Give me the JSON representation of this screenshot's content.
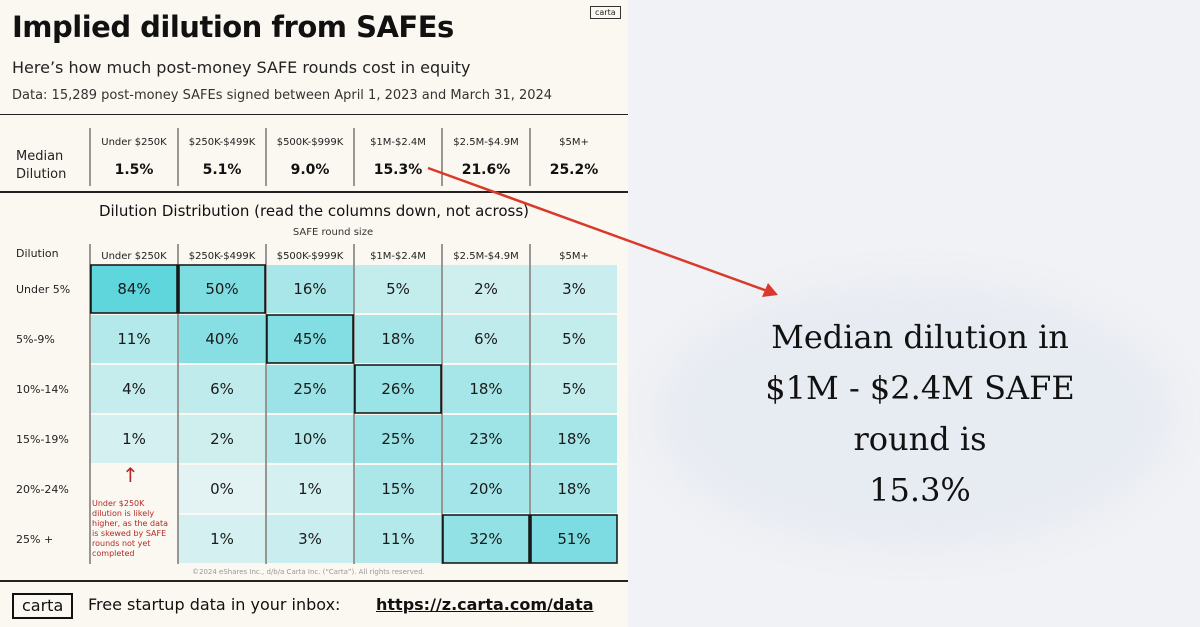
{
  "header": {
    "title": "Implied dilution from SAFEs",
    "subtitle": "Here’s how much post-money SAFE rounds cost in equity",
    "data_note": "Data: 15,289 post-money SAFEs signed between April 1, 2023 and March 31, 2024",
    "brand_tag": "carta"
  },
  "median": {
    "label_line1": "Median",
    "label_line2": "Dilution"
  },
  "distribution": {
    "title": "Dilution Distribution (read the columns down, not across)",
    "x_caption": "SAFE round size",
    "corner_label": "Dilution",
    "footnote": "Under $250K dilution is likely higher, as the data is skewed by SAFE rounds not yet completed",
    "footnote_arrow": "↑",
    "copyright": "©2024 eShares Inc., d/b/a Carta Inc. (“Carta”). All rights reserved."
  },
  "footer": {
    "logo": "carta",
    "text": "Free startup data in your inbox:",
    "link": "https://z.carta.com/data"
  },
  "callout": {
    "line1": "Median dilution in",
    "line2": "$1M - $2.4M SAFE",
    "line3": "round is",
    "line4": "15.3%"
  },
  "colors": {
    "accent_arrow": "#d93a2b",
    "cell_high": "#5fd6dc",
    "cell_low": "#e3f3f3",
    "footnote_red": "#b22a2a"
  },
  "chart_data": [
    {
      "type": "table",
      "title": "Median Dilution",
      "categories": [
        "Under $250K",
        "$250K-$499K",
        "$500K-$999K",
        "$1M-$2.4M",
        "$2.5M-$4.9M",
        "$5M+"
      ],
      "values": [
        1.5,
        5.1,
        9.0,
        15.3,
        21.6,
        25.2
      ],
      "value_labels": [
        "1.5%",
        "5.1%",
        "9.0%",
        "15.3%",
        "21.6%",
        "25.2%"
      ],
      "highlight_category": "$1M-$2.4M"
    },
    {
      "type": "heatmap",
      "title": "Dilution Distribution (read the columns down, not across)",
      "xlabel": "SAFE round size",
      "ylabel": "Dilution",
      "columns": [
        "Under $250K",
        "$250K-$499K",
        "$500K-$999K",
        "$1M-$2.4M",
        "$2.5M-$4.9M",
        "$5M+"
      ],
      "rows": [
        "Under 5%",
        "5%-9%",
        "10%-14%",
        "15%-19%",
        "20%-24%",
        "25% +"
      ],
      "values": [
        [
          84,
          50,
          16,
          5,
          2,
          3
        ],
        [
          11,
          40,
          45,
          18,
          6,
          5
        ],
        [
          4,
          6,
          25,
          26,
          18,
          5
        ],
        [
          1,
          2,
          10,
          25,
          23,
          18
        ],
        [
          null,
          0,
          1,
          15,
          20,
          18
        ],
        [
          null,
          1,
          3,
          11,
          32,
          51
        ]
      ],
      "boxed_cells": [
        [
          0,
          0
        ],
        [
          0,
          1
        ],
        [
          1,
          2
        ],
        [
          2,
          3
        ],
        [
          5,
          4
        ],
        [
          5,
          5
        ]
      ]
    }
  ]
}
